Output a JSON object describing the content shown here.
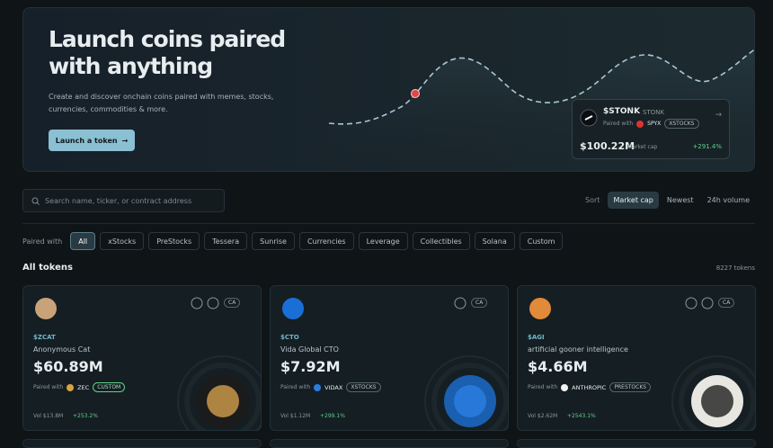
{
  "hero": {
    "title": "Launch coins paired with anything",
    "description": "Create and discover onchain coins paired with memes, stocks, currencies, commodities & more.",
    "button": "Launch a token"
  },
  "featured": {
    "ticker": "$STONK",
    "name": "STONK",
    "paired_label": "Paired with",
    "pair": "SPYX",
    "tag": "XSTOCKS",
    "market_cap": "$100.22M",
    "market_cap_label": "Market cap",
    "change": "+291.4%"
  },
  "search": {
    "placeholder": "Search name, ticker, or contract address"
  },
  "sort": {
    "label": "Sort",
    "options": [
      "Market cap",
      "Newest",
      "24h volume"
    ]
  },
  "filters": {
    "label": "Paired with",
    "options": [
      "All",
      "xStocks",
      "PreStocks",
      "Tessera",
      "Sunrise",
      "Currencies",
      "Leverage",
      "Collectibles",
      "Solana",
      "Custom"
    ]
  },
  "tokens_section": {
    "title": "All tokens",
    "count": "8227 tokens"
  },
  "tokens": [
    {
      "ticker": "$ZCAT",
      "name": "Anonymous Cat",
      "market_cap": "$60.89M",
      "paired_label": "Paired with",
      "pair": "ZEC",
      "tag": "CUSTOM",
      "ca": "CA",
      "volume": "Vol $13.8M",
      "change": "+253.2%"
    },
    {
      "ticker": "$CTO",
      "name": "Vida Global CTO",
      "market_cap": "$7.92M",
      "paired_label": "Paired with",
      "pair": "VIDAX",
      "tag": "XSTOCKS",
      "ca": "CA",
      "volume": "Vol $1.12M",
      "change": "+299.1%"
    },
    {
      "ticker": "$AGI",
      "name": "artificial gooner intelligence",
      "market_cap": "$4.66M",
      "paired_label": "Paired with",
      "pair": "ANTHROPIC",
      "tag": "PRESTOCKS",
      "ca": "CA",
      "volume": "Vol $2.62M",
      "change": "+2543.1%"
    }
  ]
}
